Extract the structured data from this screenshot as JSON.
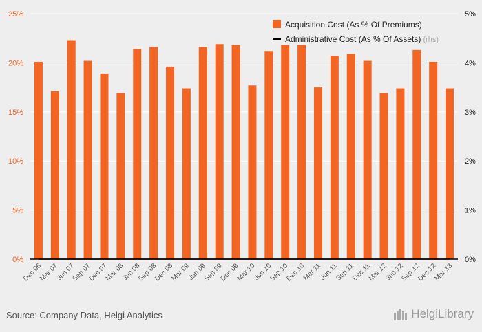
{
  "chart_data": {
    "type": "bar",
    "categories": [
      "Dec 06",
      "Mar 07",
      "Jun 07",
      "Sep 07",
      "Dec 07",
      "Mar 08",
      "Jun 08",
      "Sep 08",
      "Dec 08",
      "Mar 09",
      "Jun 09",
      "Sep 09",
      "Dec 09",
      "Mar 10",
      "Jun 10",
      "Sep 10",
      "Dec 10",
      "Mar 11",
      "Jun 11",
      "Sep 11",
      "Dec 11",
      "Mar 12",
      "Jun 12",
      "Sep 12",
      "Dec 12",
      "Mar 13"
    ],
    "series": [
      {
        "name": "Acquisition Cost (As % Of Premiums)",
        "axis": "left",
        "color": "#f26522",
        "values": [
          20.1,
          17.1,
          22.3,
          20.2,
          18.9,
          16.9,
          21.4,
          21.6,
          19.6,
          17.4,
          21.6,
          21.9,
          21.8,
          17.7,
          21.2,
          21.8,
          21.8,
          17.5,
          20.7,
          20.9,
          20.2,
          16.9,
          17.4,
          21.3,
          20.1,
          17.4
        ]
      },
      {
        "name": "Administrative Cost (As % Of Assets)",
        "axis": "right",
        "color": "#000000",
        "values": [
          0,
          0,
          0,
          0,
          0,
          0,
          0,
          0,
          0,
          0,
          0,
          0,
          0,
          0,
          0,
          0,
          0,
          0,
          0,
          0,
          0,
          0,
          0,
          0,
          0,
          0
        ]
      }
    ],
    "y_left": {
      "ylim": [
        0,
        25
      ],
      "ticks": [
        "0%",
        "5%",
        "10%",
        "15%",
        "20%",
        "25%"
      ],
      "color": "#f26522"
    },
    "y_right": {
      "ylim": [
        0,
        5
      ],
      "ticks": [
        "0%",
        "1%",
        "2%",
        "3%",
        "4%",
        "5%"
      ]
    },
    "legend_rhs_tag": "(rhs)",
    "legend_position": "top-right",
    "grid": true
  },
  "footer": {
    "source": "Source: Company Data, Helgi Analytics",
    "logo_text": "HelgiLibrary"
  }
}
